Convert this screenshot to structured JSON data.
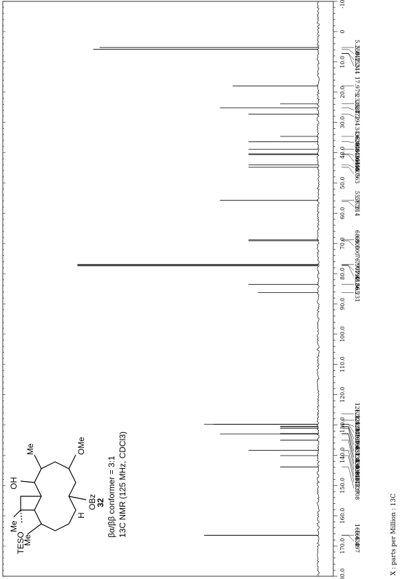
{
  "chart_data": {
    "type": "line",
    "xlabel": "X : parts per Million : 13C",
    "xlim": [
      180.0,
      -10.0
    ],
    "x_ticks": [
      "180.0",
      "170.0",
      "160.0",
      "150.0",
      "140.0",
      "130.0",
      "120.0",
      "110.0",
      "100.0",
      "90.0",
      "80.0",
      "70.0",
      "60.0",
      "50.0",
      "40.0",
      "30.0",
      "20.0",
      "10.0",
      "0",
      "-10.0"
    ],
    "peaks": [
      {
        "ppm": 5.842,
        "label": "5.842",
        "height": 0.71
      },
      {
        "ppm": 5.25,
        "label": "5.250",
        "height": 0.69
      },
      {
        "ppm": 7.153,
        "label": "7.153",
        "height": 0.0
      },
      {
        "ppm": 7.244,
        "label": "7.244",
        "height": 0.0
      },
      {
        "ppm": 17.979,
        "label": "17.979",
        "height": 0.27
      },
      {
        "ppm": 23.884,
        "label": "23.884",
        "height": 0.12
      },
      {
        "ppm": 25.171,
        "label": "25.171",
        "height": 0.31
      },
      {
        "ppm": 27.294,
        "label": "27.294",
        "height": 0.22
      },
      {
        "ppm": 34.629,
        "label": "34.629",
        "height": 0.12
      },
      {
        "ppm": 36.405,
        "label": "36.405",
        "height": 0.22
      },
      {
        "ppm": 38.845,
        "label": "38.845",
        "height": 0.22
      },
      {
        "ppm": 40.361,
        "label": "40.361",
        "height": 0.22
      },
      {
        "ppm": 40.666,
        "label": "40.666",
        "height": 0.22
      },
      {
        "ppm": 44.005,
        "label": "44.005",
        "height": 0.22
      },
      {
        "ppm": 44.763,
        "label": "44.763",
        "height": 0.22
      },
      {
        "ppm": 55.77,
        "label": "55.770",
        "height": 0.31
      },
      {
        "ppm": 56.214,
        "label": "56.214",
        "height": 0.0
      },
      {
        "ppm": 68.8,
        "label": "68.800",
        "height": 0.22
      },
      {
        "ppm": 69.1,
        "label": "69.100",
        "height": 0.22
      },
      {
        "ppm": 76.907,
        "label": "76.907",
        "height": 0.76
      },
      {
        "ppm": 77.19,
        "label": "77.190",
        "height": 0.76
      },
      {
        "ppm": 77.413,
        "label": "77.413",
        "height": 0.76
      },
      {
        "ppm": 83.565,
        "label": "83.565",
        "height": 0.22
      },
      {
        "ppm": 86.231,
        "label": "86.231",
        "height": 0.19
      },
      {
        "ppm": 126.321,
        "label": "126.321",
        "height": 0.0
      },
      {
        "ppm": 128.434,
        "label": "128.434",
        "height": 0.0
      },
      {
        "ppm": 129.745,
        "label": "129.745",
        "height": 0.36
      },
      {
        "ppm": 129.797,
        "label": "129.797",
        "height": 0.33
      },
      {
        "ppm": 130.398,
        "label": "130.398",
        "height": 0.12
      },
      {
        "ppm": 130.651,
        "label": "130.651",
        "height": 0.12
      },
      {
        "ppm": 131.134,
        "label": "131.134",
        "height": 0.12
      },
      {
        "ppm": 132.85,
        "label": "132.850",
        "height": 0.12
      },
      {
        "ppm": 133.005,
        "label": "133.005",
        "height": 0.31
      },
      {
        "ppm": 134.996,
        "label": "134.996",
        "height": 0.12
      },
      {
        "ppm": 138.377,
        "label": "138.377",
        "height": 0.22
      },
      {
        "ppm": 140.137,
        "label": "140.137",
        "height": 0.12
      },
      {
        "ppm": 143.908,
        "label": "143.908",
        "height": 0.12
      },
      {
        "ppm": 166.438,
        "label": "166.438",
        "height": 0.36
      },
      {
        "ppm": 166.497,
        "label": "166.497",
        "height": 0.36
      }
    ],
    "grid": false
  },
  "structure": {
    "labels": {
      "teso": "TESO",
      "me1": "Me",
      "me2": "Me",
      "oh": "OH",
      "me3": "Me",
      "ome": "OMe",
      "obz": "OBz",
      "h": "H"
    },
    "compound_number": "32",
    "conformer_ratio": "βα/ββ conformer = 3:1",
    "nmr_conditions": "13C NMR (125 MHz, CDCl3)"
  }
}
